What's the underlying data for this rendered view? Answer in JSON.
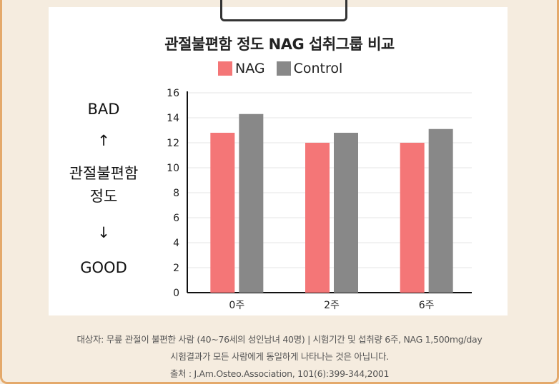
{
  "chart_data": {
    "type": "bar",
    "title": "관절불편함 정도 NAG 섭취그룹 비교",
    "categories": [
      "0주",
      "2주",
      "6주"
    ],
    "series": [
      {
        "name": "NAG",
        "values": [
          12.8,
          12.0,
          12.0
        ],
        "color": "#f47677"
      },
      {
        "name": "Control",
        "values": [
          14.3,
          12.8,
          13.1
        ],
        "color": "#888888"
      }
    ],
    "ylim": [
      0,
      16
    ],
    "yticks": [
      "0",
      "2",
      "4",
      "6",
      "8",
      "10",
      "12",
      "14",
      "16"
    ],
    "grid": true,
    "legend_position": "top"
  },
  "side_label": {
    "top": "BAD",
    "up_arrow": "↑",
    "line1": "관절불편함",
    "line2": "정도",
    "down_arrow": "↓",
    "bottom": "GOOD"
  },
  "footnotes": [
    "대상자: 무릎 관절이 불편한 사람 (40~76세의 성인남녀 40명) | 시험기간 및 섭취량 6주, NAG 1,500mg/day",
    "시험결과가 모든 사람에게 동일하게 나타나는 것은 아닙니다.",
    "출처 : J.Am.Osteo.Association, 101(6):399-344,2001"
  ],
  "colors": {
    "background": "#f5ecdf",
    "border": "#e4a96b",
    "nag": "#f47677",
    "control": "#888888"
  }
}
